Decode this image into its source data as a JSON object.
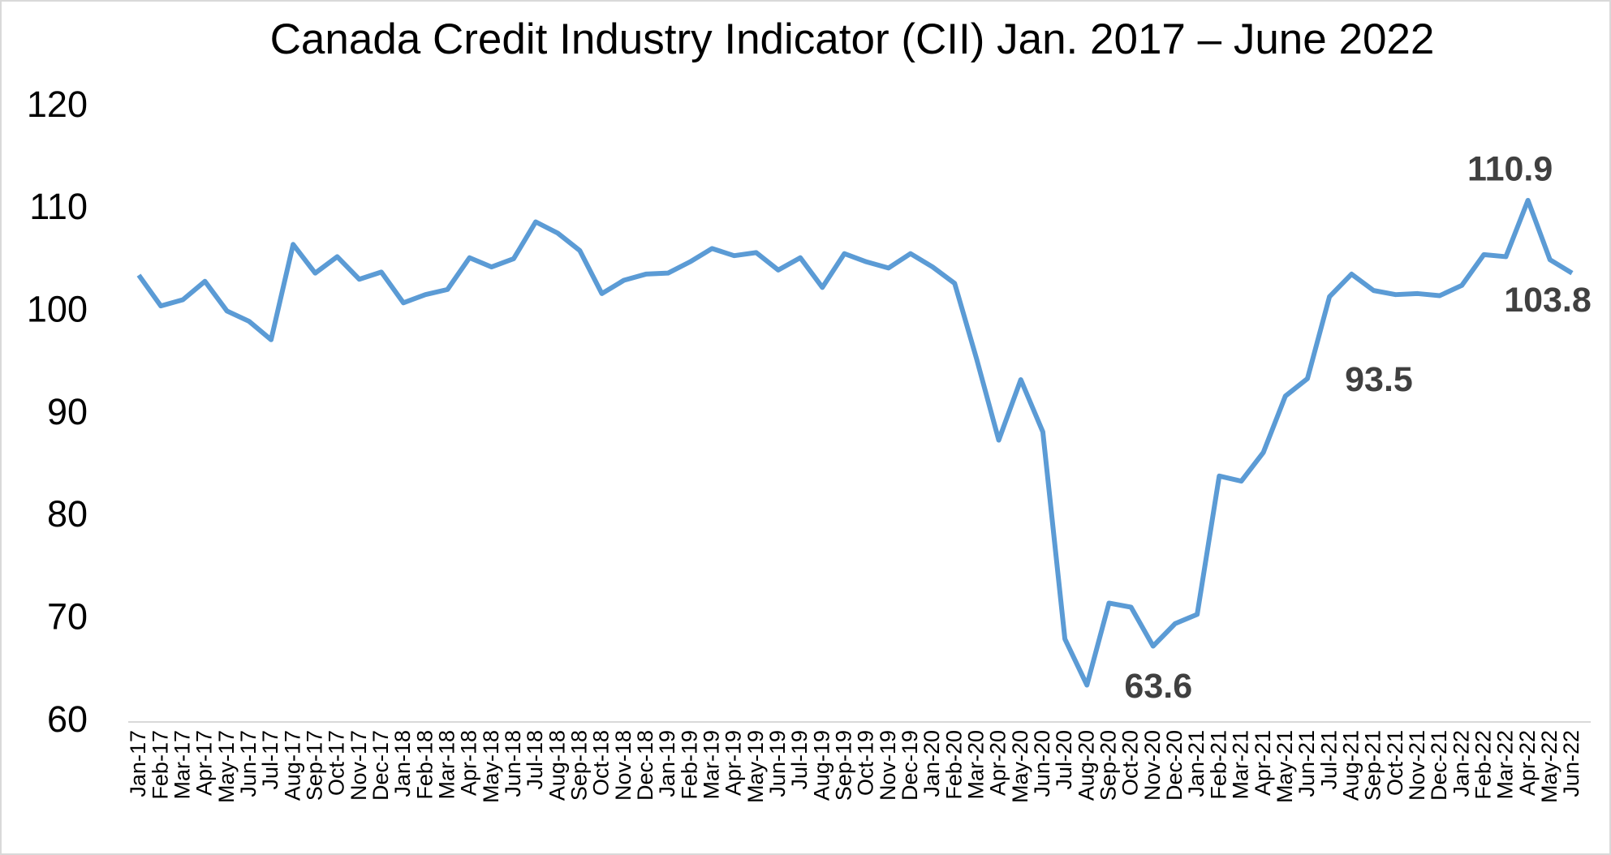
{
  "chart_data": {
    "type": "line",
    "title": "Canada Credit Industry Indicator (CII) Jan. 2017 – June 2022",
    "categories": [
      "Jan-17",
      "Feb-17",
      "Mar-17",
      "Apr-17",
      "May-17",
      "Jun-17",
      "Jul-17",
      "Aug-17",
      "Sep-17",
      "Oct-17",
      "Nov-17",
      "Dec-17",
      "Jan-18",
      "Feb-18",
      "Mar-18",
      "Apr-18",
      "May-18",
      "Jun-18",
      "Jul-18",
      "Aug-18",
      "Sep-18",
      "Oct-18",
      "Nov-18",
      "Dec-18",
      "Jan-19",
      "Feb-19",
      "Mar-19",
      "Apr-19",
      "May-19",
      "Jun-19",
      "Jul-19",
      "Aug-19",
      "Sep-19",
      "Oct-19",
      "Nov-19",
      "Dec-19",
      "Jan-20",
      "Feb-20",
      "Mar-20",
      "Apr-20",
      "May-20",
      "Jun-20",
      "Jul-20",
      "Aug-20",
      "Sep-20",
      "Oct-20",
      "Nov-20",
      "Dec-20",
      "Jan-21",
      "Feb-21",
      "Mar-21",
      "Apr-21",
      "May-21",
      "Jun-21",
      "Jul-21",
      "Aug-21",
      "Sep-21",
      "Oct-21",
      "Nov-21",
      "Dec-21",
      "Jan-22",
      "Feb-22",
      "Mar-22",
      "Apr-22",
      "May-22",
      "Jun-22"
    ],
    "series": [
      {
        "name": "CII",
        "color": "#5b9bd5",
        "values": [
          103.6,
          100.6,
          101.2,
          103.0,
          100.1,
          99.1,
          97.3,
          106.6,
          103.8,
          105.4,
          103.2,
          103.9,
          100.9,
          101.7,
          102.2,
          105.3,
          104.4,
          105.2,
          108.8,
          107.7,
          106.0,
          101.8,
          103.1,
          103.7,
          103.8,
          104.9,
          106.2,
          105.5,
          105.8,
          104.1,
          105.3,
          102.4,
          105.7,
          104.9,
          104.3,
          105.7,
          104.4,
          102.8,
          95.4,
          87.5,
          93.4,
          88.3,
          68.1,
          63.6,
          71.6,
          71.2,
          67.4,
          69.6,
          70.5,
          84.0,
          83.5,
          86.3,
          91.8,
          93.5,
          101.5,
          103.7,
          102.1,
          101.7,
          101.8,
          101.6,
          102.6,
          105.6,
          105.4,
          110.9,
          105.1,
          103.8
        ],
        "value_labels": [
          null,
          null,
          null,
          null,
          null,
          null,
          null,
          null,
          null,
          null,
          null,
          null,
          null,
          null,
          null,
          null,
          null,
          null,
          null,
          null,
          null,
          null,
          null,
          null,
          null,
          null,
          null,
          null,
          null,
          null,
          null,
          null,
          null,
          null,
          null,
          null,
          null,
          null,
          null,
          null,
          null,
          null,
          null,
          "63.6",
          null,
          null,
          null,
          null,
          null,
          null,
          null,
          null,
          null,
          "93.5",
          null,
          null,
          null,
          null,
          null,
          null,
          null,
          null,
          null,
          "110.9",
          null,
          "103.8"
        ]
      }
    ],
    "ylim": [
      60,
      120
    ],
    "yticks": [
      60,
      70,
      80,
      90,
      100,
      110,
      120
    ],
    "grid": false
  }
}
